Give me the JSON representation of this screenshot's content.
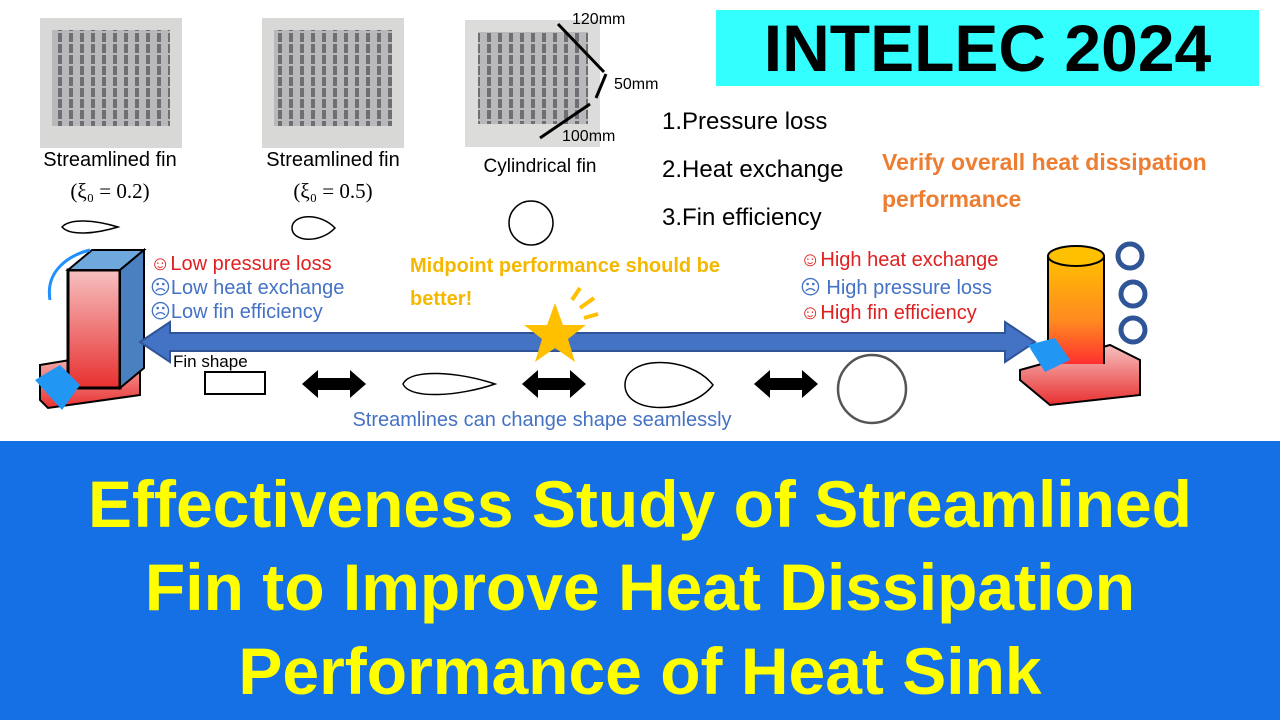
{
  "header": {
    "badge": "INTELEC 2024"
  },
  "samples": [
    {
      "label": "Streamlined fin",
      "param": "(ξ₀ = 0.2)"
    },
    {
      "label": "Streamlined fin",
      "param": "(ξ₀ = 0.5)"
    },
    {
      "label": "Cylindrical fin"
    }
  ],
  "dimensions": [
    "120mm",
    "50mm",
    "100mm"
  ],
  "criteria": [
    "1.Pressure loss",
    "2.Heat exchange",
    "3.Fin efficiency"
  ],
  "goal": "Verify overall heat dissipation performance",
  "left_traits": [
    "☺Low pressure loss",
    "☹Low heat exchange",
    "☹Low fin efficiency"
  ],
  "midpoint_note": "Midpoint performance should be better!",
  "right_traits": [
    "☺High heat exchange",
    "☹ High pressure loss",
    "☺High fin efficiency"
  ],
  "fin_shape_label": "Fin shape",
  "caption": "Streamlines can change shape seamlessly",
  "title": {
    "lines": [
      "Effectiveness Study of  Streamlined",
      "Fin to Improve Heat Dissipation",
      "Performance of Heat Sink"
    ]
  }
}
